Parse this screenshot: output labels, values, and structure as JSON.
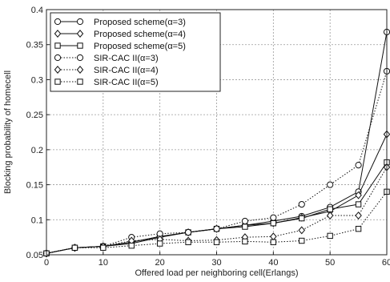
{
  "chart_data": {
    "type": "line",
    "title": "",
    "xlabel": "Offered load per neighboring cell(Erlangs)",
    "ylabel": "Blocking probability of homecell",
    "xlim": [
      0,
      60
    ],
    "ylim": [
      0.05,
      0.4
    ],
    "x_ticks": [
      "0",
      "10",
      "20",
      "30",
      "40",
      "50",
      "60"
    ],
    "y_ticks": [
      "0.05",
      "0.1",
      "0.15",
      "0.2",
      "0.25",
      "0.3",
      "0.35",
      "0.4"
    ],
    "grid": true,
    "legend_position": "top-left",
    "x": [
      0,
      5,
      10,
      15,
      20,
      25,
      30,
      35,
      40,
      45,
      50,
      55,
      60
    ],
    "series": [
      {
        "name": "Proposed scheme(α=3)",
        "marker": "circle",
        "line_style": "solid",
        "values": [
          0.052,
          0.06,
          0.062,
          0.068,
          0.076,
          0.082,
          0.087,
          0.092,
          0.098,
          0.105,
          0.118,
          0.14,
          0.368
        ]
      },
      {
        "name": "Proposed scheme(α=4)",
        "marker": "diamond",
        "line_style": "solid",
        "values": [
          0.052,
          0.06,
          0.062,
          0.068,
          0.076,
          0.082,
          0.087,
          0.092,
          0.095,
          0.103,
          0.112,
          0.135,
          0.222
        ]
      },
      {
        "name": "Proposed scheme(α=5)",
        "marker": "square",
        "line_style": "solid",
        "values": [
          0.052,
          0.06,
          0.062,
          0.066,
          0.075,
          0.082,
          0.087,
          0.09,
          0.095,
          0.102,
          0.115,
          0.122,
          0.182
        ]
      },
      {
        "name": "SIR-CAC II(α=3)",
        "marker": "circle",
        "line_style": "dotted",
        "values": [
          0.052,
          0.06,
          0.062,
          0.075,
          0.08,
          0.082,
          0.087,
          0.098,
          0.103,
          0.122,
          0.15,
          0.178,
          0.312
        ]
      },
      {
        "name": "SIR-CAC II(α=4)",
        "marker": "diamond",
        "line_style": "dotted",
        "values": [
          0.052,
          0.06,
          0.062,
          0.07,
          0.072,
          0.07,
          0.071,
          0.075,
          0.076,
          0.085,
          0.106,
          0.106,
          0.175
        ]
      },
      {
        "name": "SIR-CAC II(α=5)",
        "marker": "square",
        "line_style": "dotted",
        "values": [
          0.052,
          0.06,
          0.06,
          0.063,
          0.066,
          0.068,
          0.068,
          0.069,
          0.068,
          0.07,
          0.077,
          0.087,
          0.14
        ]
      }
    ]
  }
}
